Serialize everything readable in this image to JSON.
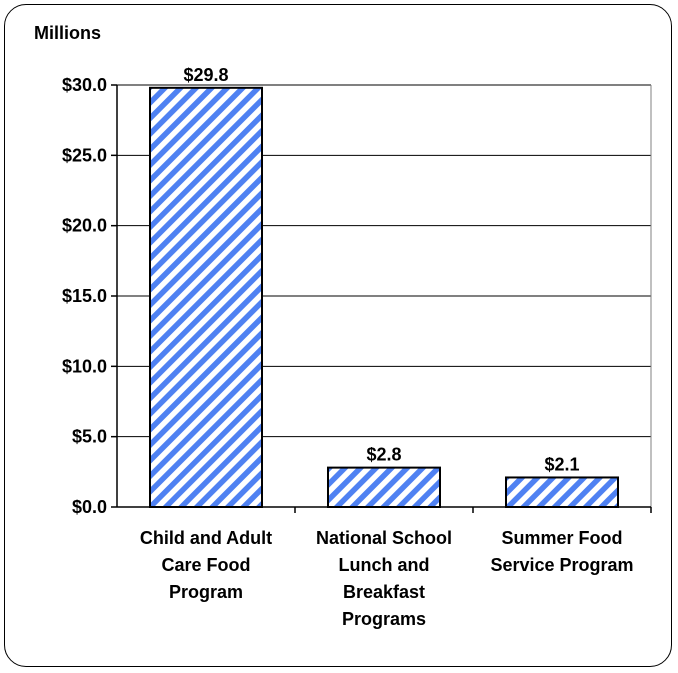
{
  "chart_data": {
    "type": "bar",
    "unit_label": "Millions",
    "categories": [
      [
        "Child and Adult",
        "Care Food",
        "Program"
      ],
      [
        "National School",
        "Lunch and",
        "Breakfast",
        "Programs"
      ],
      [
        "Summer Food",
        "Service Program"
      ]
    ],
    "values": [
      29.8,
      2.8,
      2.1
    ],
    "value_labels": [
      "$29.8",
      "$2.8",
      "$2.1"
    ],
    "y_ticks": [
      "$0.0",
      "$5.0",
      "$10.0",
      "$15.0",
      "$20.0",
      "$25.0",
      "$30.0"
    ],
    "ylim": [
      0,
      30
    ],
    "grid": true,
    "legend": "none",
    "colors": {
      "bar_stripe": "#4f81f2",
      "bar_background": "#ffffff",
      "bar_outline": "#000000",
      "gridline": "#000000",
      "frame": "#000000"
    }
  }
}
